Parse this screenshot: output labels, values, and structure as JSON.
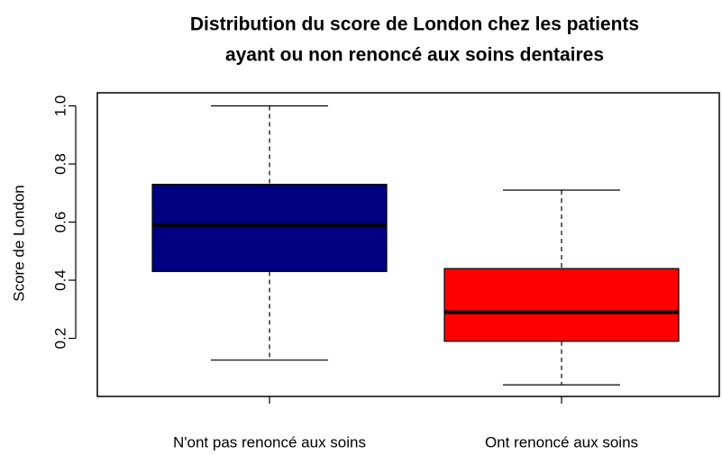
{
  "chart_data": {
    "type": "boxplot",
    "title": [
      "Distribution du score de London chez les patients",
      "ayant ou non renoncé aux soins dentaires"
    ],
    "ylabel": "Score de London",
    "categories": [
      "N'ont pas renoncé aux soins",
      "Ont renoncé aux soins"
    ],
    "boxes": [
      {
        "whislo": 0.125,
        "q1": 0.43,
        "med": 0.59,
        "q3": 0.73,
        "whishi": 1.0,
        "color": "#000080"
      },
      {
        "whislo": 0.04,
        "q1": 0.19,
        "med": 0.29,
        "q3": 0.44,
        "whishi": 0.71,
        "color": "#ff0000"
      }
    ],
    "ylim": [
      0,
      1.045
    ],
    "yticks": [
      0.2,
      0.4,
      0.6,
      0.8,
      {
        "value": 1.0,
        "label": "1.0"
      }
    ]
  }
}
